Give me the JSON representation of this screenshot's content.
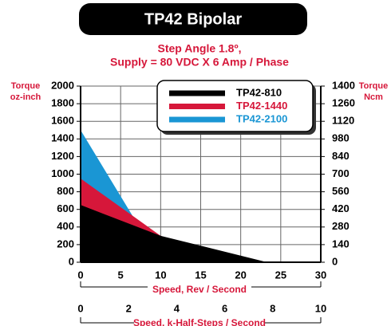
{
  "chart_data": {
    "type": "area",
    "title": "TP42 Bipolar",
    "subtitle": [
      "Step Angle 1.8º,",
      "Supply = 80 VDC X 6 Amp / Phase"
    ],
    "ylabel": [
      "Torque",
      "oz-inch"
    ],
    "y2label": [
      "Torque",
      "Ncm"
    ],
    "xlabel": "Speed, Rev / Second",
    "x2label": "Speed, k-Half-Steps / Second",
    "xlim": [
      0,
      30
    ],
    "xticks": [
      0,
      5,
      10,
      15,
      20,
      25,
      30
    ],
    "x2lim": [
      0,
      10
    ],
    "x2ticks": [
      0,
      2,
      4,
      6,
      8,
      10
    ],
    "ylim": [
      0,
      2000
    ],
    "yticks": [
      0,
      200,
      400,
      600,
      800,
      1000,
      1200,
      1400,
      1600,
      1800,
      2000
    ],
    "y2lim": [
      0,
      1400
    ],
    "y2ticks": [
      0,
      140,
      280,
      420,
      560,
      700,
      840,
      980,
      1120,
      1260,
      1400
    ],
    "grid": true,
    "series": [
      {
        "name": "TP42-810",
        "color": "#000000",
        "x": [
          0,
          10,
          23.3
        ],
        "values": [
          650,
          300,
          0
        ]
      },
      {
        "name": "TP42-1440",
        "color": "#d6173a",
        "x": [
          0,
          10,
          20
        ],
        "values": [
          950,
          300,
          0
        ]
      },
      {
        "name": "TP42-2100",
        "color": "#1a96d4",
        "x": [
          0,
          10
        ],
        "values": [
          1500,
          0
        ]
      }
    ]
  }
}
